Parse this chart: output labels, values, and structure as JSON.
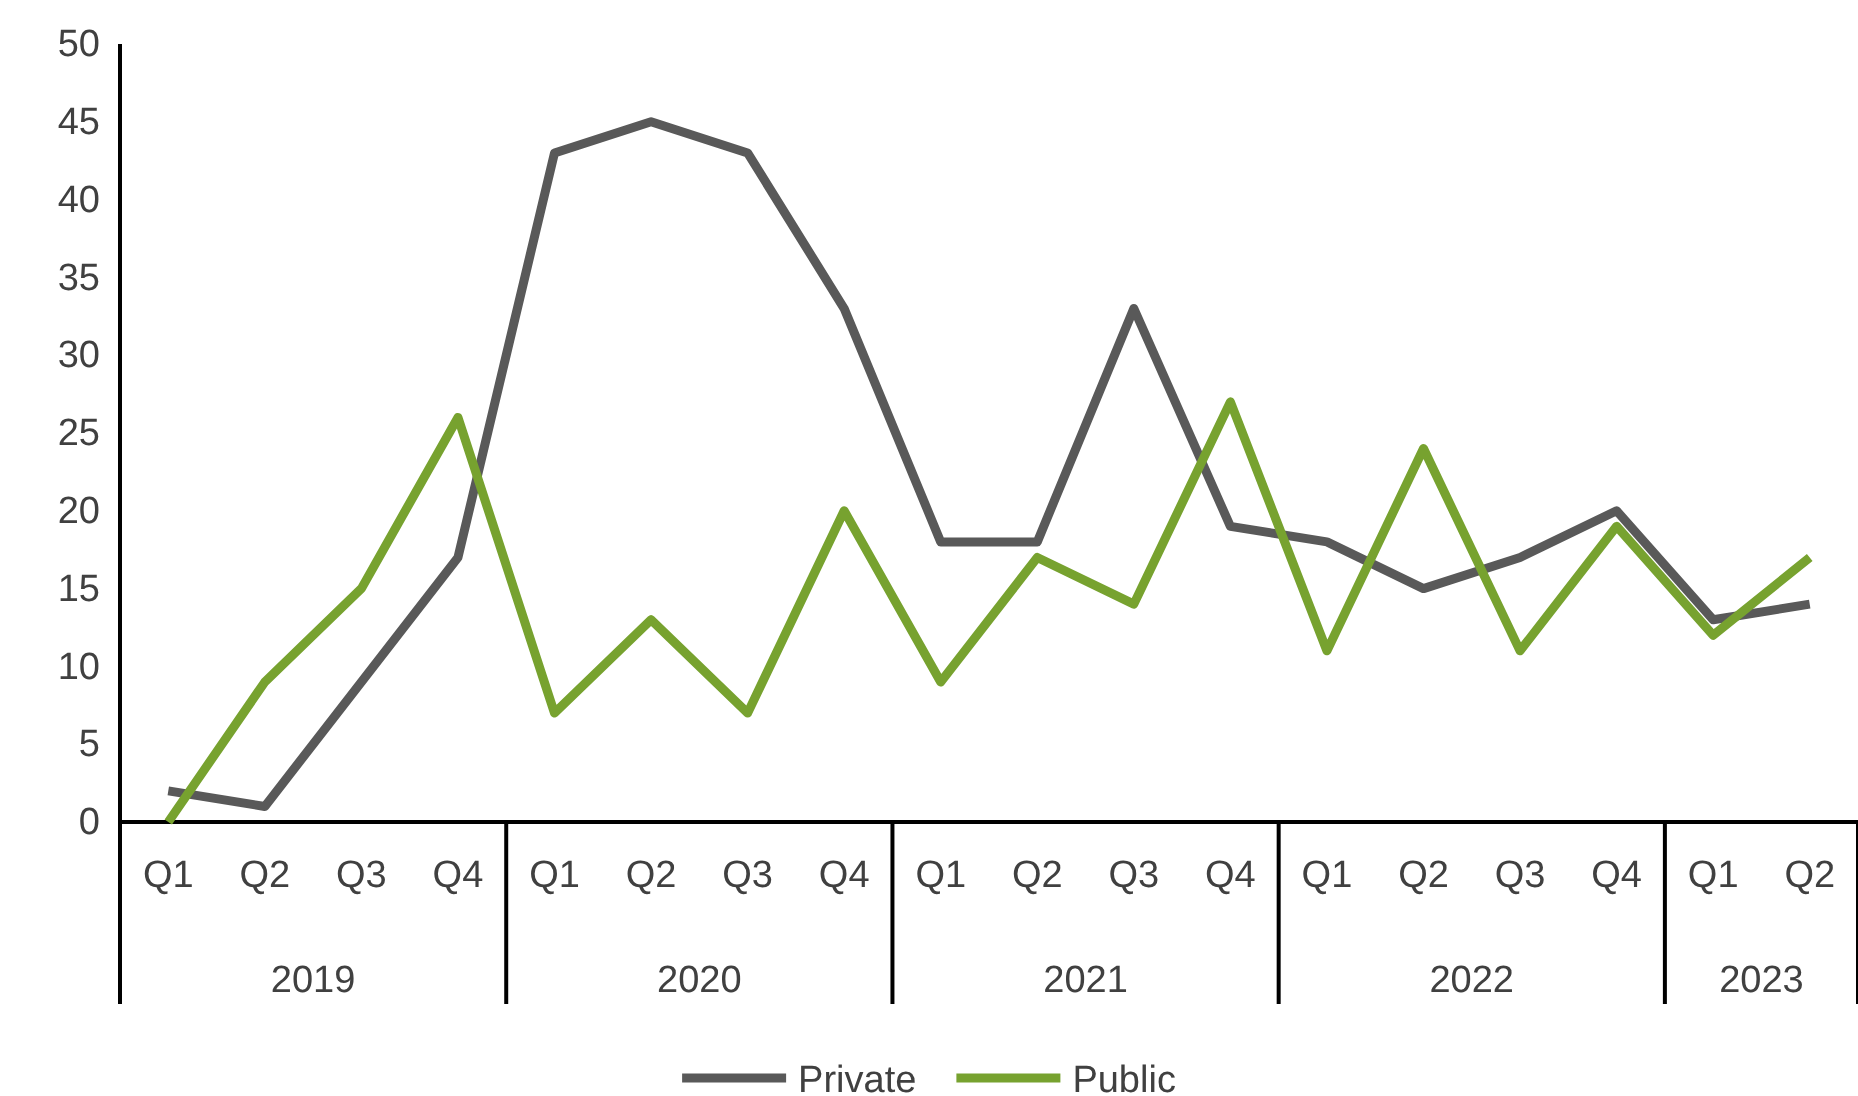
{
  "chart_data": {
    "type": "line",
    "categories": [
      "Q1",
      "Q2",
      "Q3",
      "Q4",
      "Q1",
      "Q2",
      "Q3",
      "Q4",
      "Q1",
      "Q2",
      "Q3",
      "Q4",
      "Q1",
      "Q2",
      "Q3",
      "Q4",
      "Q1",
      "Q2"
    ],
    "annotations": [
      "2019",
      "2020",
      "2021",
      "2022",
      "2023"
    ],
    "series": [
      {
        "name": "Private",
        "color": "#595959",
        "values": [
          2,
          1,
          9,
          17,
          43,
          45,
          43,
          33,
          18,
          18,
          33,
          19,
          18,
          15,
          17,
          20,
          13,
          14
        ]
      },
      {
        "name": "Public",
        "color": "#77a22f",
        "values": [
          0,
          9,
          15,
          26,
          7,
          13,
          7,
          20,
          9,
          17,
          14,
          27,
          11,
          24,
          11,
          19,
          12,
          17
        ]
      }
    ],
    "ylim": [
      0,
      50
    ],
    "yticks": [
      0,
      5,
      10,
      15,
      20,
      25,
      30,
      35,
      40,
      45,
      50
    ],
    "grid": false,
    "legend": "bottom",
    "marker": "none",
    "line_style": "solid"
  }
}
